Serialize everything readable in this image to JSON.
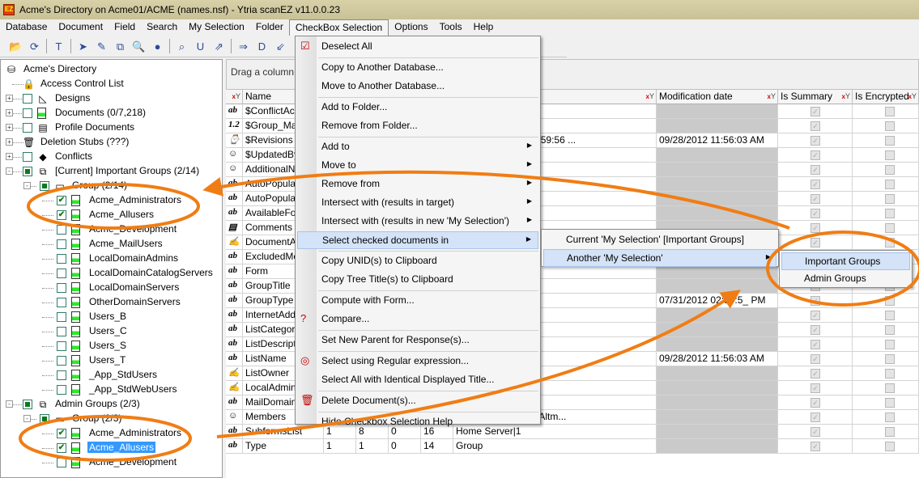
{
  "window": {
    "title": "Acme's Directory on Acme01/ACME (names.nsf) - Ytria scanEZ v11.0.0.23"
  },
  "menubar": [
    "Database",
    "Document",
    "Field",
    "Search",
    "My Selection",
    "Folder",
    "CheckBox Selection",
    "Options",
    "Tools",
    "Help"
  ],
  "toolbar": {
    "icons": [
      "open-folder",
      "refresh",
      "template",
      "doc-arrow",
      "edit",
      "replicate",
      "search-db",
      "ini",
      "find-unid",
      "unid",
      "export",
      "dxl-export",
      "dxl",
      "import",
      "filter-brush",
      "glasses",
      "check-select",
      "check-copy",
      "check-move",
      "check-compute",
      "check-delete",
      "check-regex"
    ]
  },
  "tree": [
    {
      "level": 0,
      "label": "Acme's Directory",
      "icon": "database-icon"
    },
    {
      "level": 1,
      "label": "Access Control List",
      "icon": "lock-icon"
    },
    {
      "level": 1,
      "exp": "+",
      "cb": "empty",
      "label": "Designs",
      "icon": "design-icon"
    },
    {
      "level": 1,
      "exp": "+",
      "cb": "empty",
      "label": "Documents  (0/7,218)",
      "icon": "document-icon"
    },
    {
      "level": 1,
      "exp": "+",
      "cb": "empty",
      "label": "Profile Documents",
      "icon": "profile-icon"
    },
    {
      "level": 1,
      "exp": "+",
      "label": "Deletion Stubs  (???)",
      "icon": "trash-icon"
    },
    {
      "level": 1,
      "exp": "+",
      "cb": "empty",
      "label": "Conflicts",
      "icon": "conflict-icon"
    },
    {
      "level": 1,
      "exp": "-",
      "cb": "partial",
      "label": "[Current] Important Groups  (2/14)",
      "icon": "selection-icon"
    },
    {
      "level": 2,
      "exp": "-",
      "cb": "partial",
      "label": "Group  (2/14)",
      "icon": "folder-icon"
    },
    {
      "level": 3,
      "cb": "checked",
      "label": "Acme_Administrators",
      "icon": "document-icon"
    },
    {
      "level": 3,
      "cb": "checked",
      "label": "Acme_Allusers",
      "icon": "document-icon"
    },
    {
      "level": 3,
      "cb": "empty",
      "label": "Acme_Development",
      "icon": "document-icon"
    },
    {
      "level": 3,
      "cb": "empty",
      "label": "Acme_MailUsers",
      "icon": "document-icon"
    },
    {
      "level": 3,
      "cb": "empty",
      "label": "LocalDomainAdmins",
      "icon": "document-icon"
    },
    {
      "level": 3,
      "cb": "empty",
      "label": "LocalDomainCatalogServers",
      "icon": "document-icon"
    },
    {
      "level": 3,
      "cb": "empty",
      "label": "LocalDomainServers",
      "icon": "document-icon"
    },
    {
      "level": 3,
      "cb": "empty",
      "label": "OtherDomainServers",
      "icon": "document-icon"
    },
    {
      "level": 3,
      "cb": "empty",
      "label": "Users_B",
      "icon": "document-icon"
    },
    {
      "level": 3,
      "cb": "empty",
      "label": "Users_C",
      "icon": "document-icon"
    },
    {
      "level": 3,
      "cb": "empty",
      "label": "Users_S",
      "icon": "document-icon"
    },
    {
      "level": 3,
      "cb": "empty",
      "label": "Users_T",
      "icon": "document-icon"
    },
    {
      "level": 3,
      "cb": "empty",
      "label": "_App_StdUsers",
      "icon": "document-icon"
    },
    {
      "level": 3,
      "cb": "empty",
      "label": "_App_StdWebUsers",
      "icon": "document-icon"
    },
    {
      "level": 1,
      "exp": "-",
      "cb": "partial",
      "label": "Admin Groups  (2/3)",
      "icon": "selection-icon"
    },
    {
      "level": 2,
      "exp": "-",
      "cb": "partial",
      "label": "Group  (2/3)",
      "icon": "folder-icon"
    },
    {
      "level": 3,
      "cb": "checked",
      "label": "Acme_Administrators",
      "icon": "document-icon"
    },
    {
      "level": 3,
      "cb": "checked",
      "label": "Acme_Allusers",
      "icon": "document-icon",
      "selected": true
    },
    {
      "level": 3,
      "cb": "empty",
      "label": "Acme_Development",
      "icon": "document-icon"
    }
  ],
  "grid": {
    "drag_hint": "Drag a column",
    "columns": [
      "Name",
      "",
      "",
      "",
      "",
      "",
      "Modification date",
      "Is Summary",
      "Is Encrypted"
    ],
    "rows": [
      {
        "type": "ab",
        "name": "$ConflictAction",
        "vals": [
          "",
          "",
          "",
          "",
          ""
        ],
        "value": "",
        "mod": "",
        "sum": true
      },
      {
        "type": "1.2",
        "name": "$Group_Manager",
        "vals": [
          "",
          "",
          "",
          "",
          ""
        ],
        "value": "",
        "mod": "",
        "sum": true
      },
      {
        "type": "date",
        "name": "$Revisions",
        "vals": [
          "",
          "",
          "",
          "",
          ""
        ],
        "value": "PM; 07/31/2012 02:59:56 ...",
        "mod": "09/28/2012 11:56:03 AM",
        "sum": true
      },
      {
        "type": "names",
        "name": "$UpdatedBy",
        "vals": [
          "",
          "",
          "",
          "",
          ""
        ],
        "value": "=ACME",
        "mod": "",
        "sum": true
      },
      {
        "type": "names",
        "name": "AdditionalNames",
        "vals": [
          "",
          "",
          "",
          "",
          ""
        ],
        "value": "",
        "mod": "",
        "sum": true
      },
      {
        "type": "ab",
        "name": "AutoPopulate",
        "vals": [
          "",
          "",
          "",
          "",
          ""
        ],
        "value": "",
        "mod": "",
        "sum": true
      },
      {
        "type": "ab",
        "name": "AutoPopulateMode",
        "vals": [
          "",
          "",
          "",
          "",
          ""
        ],
        "value": "",
        "mod": "",
        "sum": true
      },
      {
        "type": "ab",
        "name": "AvailableForDirSync",
        "vals": [
          "",
          "",
          "",
          "",
          ""
        ],
        "value": "",
        "mod": "",
        "sum": true
      },
      {
        "type": "rich",
        "name": "Comments",
        "vals": [
          "",
          "",
          "",
          "",
          ""
        ],
        "value": "",
        "mod": "",
        "sum": true
      },
      {
        "type": "authors",
        "name": "DocumentAccess",
        "vals": [
          "",
          "",
          "",
          "",
          ""
        ],
        "value": "",
        "mod": "",
        "sum": true
      },
      {
        "type": "ab",
        "name": "ExcludedMembers",
        "vals": [
          "",
          "",
          "",
          "",
          ""
        ],
        "value": "",
        "mod": "",
        "sum": true
      },
      {
        "type": "ab",
        "name": "Form",
        "vals": [
          "",
          "",
          "",
          "",
          ""
        ],
        "value": "",
        "mod": "",
        "sum": true
      },
      {
        "type": "ab",
        "name": "GroupTitle",
        "vals": [
          "",
          "",
          "",
          "",
          ""
        ],
        "value": "",
        "mod": "",
        "sum": true
      },
      {
        "type": "ab",
        "name": "GroupType",
        "vals": [
          "",
          "",
          "",
          "",
          ""
        ],
        "value": "",
        "mod": "07/31/2012 02:54:5_ PM",
        "sum": true
      },
      {
        "type": "ab",
        "name": "InternetAddress",
        "vals": [
          "",
          "",
          "",
          "",
          ""
        ],
        "value": "",
        "mod": "",
        "sum": true
      },
      {
        "type": "ab",
        "name": "ListCategory",
        "vals": [
          "",
          "",
          "",
          "",
          ""
        ],
        "value": "",
        "mod": "",
        "sum": true
      },
      {
        "type": "ab",
        "name": "ListDescription",
        "vals": [
          "",
          "",
          "",
          "",
          ""
        ],
        "value": "",
        "mod": "",
        "sum": true
      },
      {
        "type": "ab",
        "name": "ListName",
        "vals": [
          "",
          "",
          "",
          "",
          ""
        ],
        "value": "",
        "mod": "09/28/2012 11:56:03 AM",
        "sum": true
      },
      {
        "type": "authors",
        "name": "ListOwner",
        "vals": [
          "",
          "",
          "",
          "",
          ""
        ],
        "value": "",
        "mod": "",
        "sum": true
      },
      {
        "type": "authors",
        "name": "LocalAdmin",
        "vals": [
          "",
          "",
          "",
          "",
          ""
        ],
        "value": "rs",
        "mod": "",
        "sum": true
      },
      {
        "type": "ab",
        "name": "MailDomain",
        "vals": [
          "",
          "",
          "",
          "",
          ""
        ],
        "value": "",
        "mod": "",
        "sum": true
      },
      {
        "type": "names",
        "name": "Members",
        "vals": [
          "",
          "",
          "",
          "",
          ""
        ],
        "value": "ACME; CN=Daniel Altm...",
        "mod": "",
        "sum": true
      },
      {
        "type": "ab",
        "name": "SubformsList",
        "vals": [
          "1",
          "8",
          "0",
          "16"
        ],
        "value": "Home Server|1",
        "mod": "",
        "sum": true
      },
      {
        "type": "ab",
        "name": "Type",
        "vals": [
          "1",
          "1",
          "0",
          "14"
        ],
        "value": "Group",
        "mod": "",
        "sum": true
      }
    ]
  },
  "menu": {
    "items": [
      {
        "label": "Deselect All",
        "icon": "checkbox-icon"
      },
      {
        "sep": true
      },
      {
        "label": "Copy to Another Database..."
      },
      {
        "label": "Move to Another Database..."
      },
      {
        "sep": true
      },
      {
        "label": "Add to Folder..."
      },
      {
        "label": "Remove from Folder..."
      },
      {
        "sep": true
      },
      {
        "label": "Add to",
        "sub": true
      },
      {
        "label": "Move to",
        "sub": true
      },
      {
        "label": "Remove from",
        "sub": true
      },
      {
        "label": "Intersect with (results in target)",
        "sub": true
      },
      {
        "label": "Intersect with (results in new 'My Selection')",
        "sub": true
      },
      {
        "label": "Select checked documents in",
        "sub": true,
        "hl": true
      },
      {
        "sep": true
      },
      {
        "label": "Copy UNID(s) to Clipboard"
      },
      {
        "label": "Copy Tree Title(s) to Clipboard"
      },
      {
        "sep": true
      },
      {
        "label": "Compute with Form..."
      },
      {
        "label": "Compare...",
        "icon": "compare-icon"
      },
      {
        "sep": true
      },
      {
        "label": "Set New Parent for Response(s)..."
      },
      {
        "sep": true
      },
      {
        "label": "Select using Regular expression...",
        "icon": "regex-icon"
      },
      {
        "label": "Select All with Identical Displayed Title..."
      },
      {
        "sep": true
      },
      {
        "label": "Delete Document(s)...",
        "icon": "delete-icon"
      },
      {
        "sep": true
      },
      {
        "label": "Hide Checkbox Selection Help"
      }
    ]
  },
  "submenu1": [
    "Current 'My Selection' [Important Groups]",
    "Another 'My Selection'"
  ],
  "submenu2": [
    "Important Groups",
    "Admin Groups"
  ],
  "colors": {
    "annotation": "#f07d14",
    "highlight": "#d4e3f7",
    "selection": "#3399ff"
  }
}
